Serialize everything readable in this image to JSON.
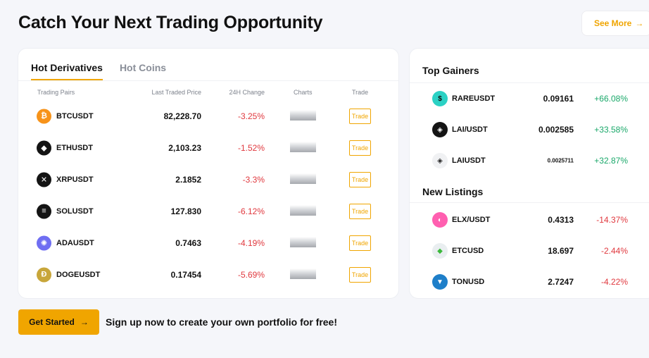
{
  "header": {
    "title": "Catch Your Next Trading Opportunity",
    "see_more": "See More",
    "arrow": "→"
  },
  "derivatives": {
    "tabs": [
      {
        "label": "Hot Derivatives",
        "active": true
      },
      {
        "label": "Hot Coins",
        "active": false
      }
    ],
    "columns": {
      "pair": "Trading Pairs",
      "price": "Last Traded Price",
      "change": "24H Change",
      "charts": "Charts",
      "trade": "Trade"
    },
    "rows": [
      {
        "pair": "BTCUSDT",
        "price": "82,228.70",
        "change": "-3.25%",
        "trade": "Trade",
        "icon": "bitcoin-icon",
        "icon_glyph": "₿",
        "icon_color": "#f7931a"
      },
      {
        "pair": "ETHUSDT",
        "price": "2,103.23",
        "change": "-1.52%",
        "trade": "Trade",
        "icon": "ethereum-icon",
        "icon_glyph": "◆",
        "icon_color": "#141414"
      },
      {
        "pair": "XRPUSDT",
        "price": "2.1852",
        "change": "-3.3%",
        "trade": "Trade",
        "icon": "xrp-icon",
        "icon_glyph": "✕",
        "icon_color": "#141414"
      },
      {
        "pair": "SOLUSDT",
        "price": "127.830",
        "change": "-6.12%",
        "trade": "Trade",
        "icon": "solana-icon",
        "icon_glyph": "≡",
        "icon_color": "#141414"
      },
      {
        "pair": "ADAUSDT",
        "price": "0.7463",
        "change": "-4.19%",
        "trade": "Trade",
        "icon": "cardano-icon",
        "icon_glyph": "✺",
        "icon_color": "#6f6ef2"
      },
      {
        "pair": "DOGEUSDT",
        "price": "0.17454",
        "change": "-5.69%",
        "trade": "Trade",
        "icon": "dogecoin-icon",
        "icon_glyph": "Ð",
        "icon_color": "#c8a63a"
      }
    ]
  },
  "top_gainers": {
    "title": "Top Gainers",
    "rows": [
      {
        "pair": "RAREUSDT",
        "price": "0.09161",
        "change": "+66.08%",
        "icon": "rare-icon",
        "icon_glyph": "$",
        "icon_color": "#2bd1c4",
        "icon_text_color": "#111"
      },
      {
        "pair": "LAI/USDT",
        "price": "0.002585",
        "change": "+33.58%",
        "icon": "lai-icon",
        "icon_glyph": "◈",
        "icon_color": "#141414",
        "icon_text_color": "#fff"
      },
      {
        "pair": "LAIUSDT",
        "price": "0.0025711",
        "change": "+32.87%",
        "icon": "lai-icon",
        "icon_glyph": "◈",
        "icon_color": "#f0f1f3",
        "icon_text_color": "#222"
      }
    ]
  },
  "new_listings": {
    "title": "New Listings",
    "rows": [
      {
        "pair": "ELX/USDT",
        "price": "0.4313",
        "change": "-14.37%",
        "icon": "elx-icon",
        "icon_glyph": "◐",
        "icon_color": "#ff5fb0",
        "icon_text_color": "#fff"
      },
      {
        "pair": "ETCUSD",
        "price": "18.697",
        "change": "-2.44%",
        "icon": "ethereum-classic-icon",
        "icon_glyph": "◆",
        "icon_color": "#e9eef0",
        "icon_text_color": "#3ab83a"
      },
      {
        "pair": "TONUSD",
        "price": "2.7247",
        "change": "-4.22%",
        "icon": "ton-icon",
        "icon_glyph": "▼",
        "icon_color": "#1e7fc9",
        "icon_text_color": "#fff"
      }
    ]
  },
  "footer": {
    "get_started": "Get Started",
    "arrow": "→",
    "signup_text": "Sign up now to create your own portfolio for free!"
  }
}
